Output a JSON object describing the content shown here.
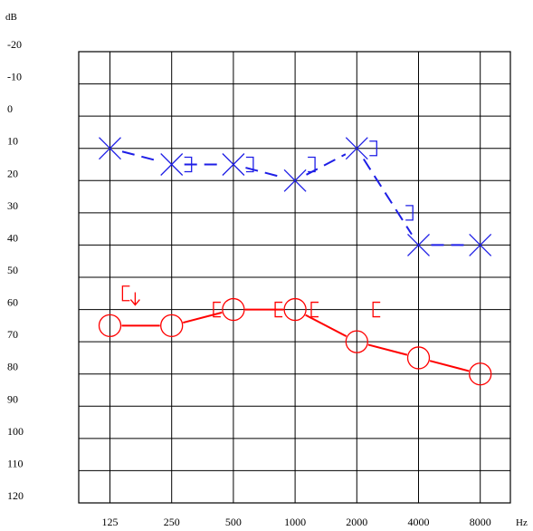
{
  "chart_data": {
    "type": "line",
    "title": "",
    "ylabel": "dB",
    "xlabel": "Hz",
    "ylim": [
      -20,
      120
    ],
    "y_inverted": true,
    "grid": true,
    "x_scale": "log2",
    "x_ticks": [
      "125",
      "250",
      "500",
      "1000",
      "2000",
      "4000",
      "8000"
    ],
    "x_tick_values": [
      125,
      250,
      500,
      1000,
      2000,
      4000,
      8000
    ],
    "y_ticks": [
      -20,
      -10,
      0,
      10,
      20,
      30,
      40,
      50,
      60,
      70,
      80,
      90,
      100,
      110,
      120
    ],
    "series": [
      {
        "marker": "x",
        "color": "#1e1ee6",
        "line_style": "dashed",
        "points": [
          [
            125,
            10
          ],
          [
            250,
            15
          ],
          [
            500,
            15
          ],
          [
            1000,
            20
          ],
          [
            2000,
            10
          ],
          [
            4000,
            40
          ],
          [
            8000,
            40
          ]
        ]
      },
      {
        "marker": "circle",
        "color": "#ff0000",
        "line_style": "solid",
        "points": [
          [
            125,
            65
          ],
          [
            250,
            65
          ],
          [
            500,
            60
          ],
          [
            1000,
            60
          ],
          [
            2000,
            70
          ],
          [
            4000,
            75
          ],
          [
            8000,
            80
          ]
        ]
      },
      {
        "marker": "bracket-right",
        "color": "#1e1ee6",
        "points": [
          [
            250,
            15
          ],
          [
            500,
            15
          ],
          [
            1000,
            15
          ],
          [
            2000,
            10
          ],
          [
            3000,
            30
          ]
        ]
      },
      {
        "marker": "bracket-left",
        "color": "#ff0000",
        "points": [
          [
            180,
            55
          ],
          [
            500,
            60
          ],
          [
            1000,
            60
          ],
          [
            1500,
            60
          ],
          [
            3000,
            60
          ]
        ]
      }
    ],
    "annotations": [
      {
        "type": "down-arrow",
        "color": "#ff0000",
        "x": 180,
        "y": 60
      }
    ]
  }
}
